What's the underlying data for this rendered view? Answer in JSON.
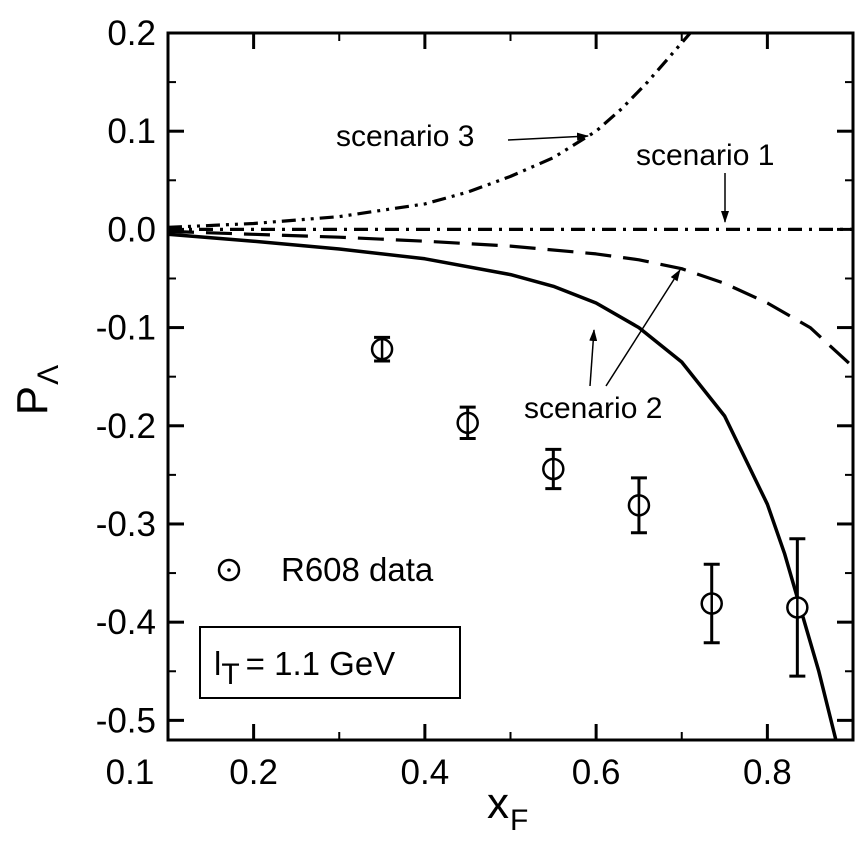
{
  "chart_data": {
    "type": "line",
    "xlabel": "x",
    "xlabel_sub": "F",
    "ylabel": "P",
    "ylabel_sub": "Λ",
    "xlim": [
      0.1,
      0.9
    ],
    "ylim": [
      -0.52,
      0.2
    ],
    "x_ticks": [
      0.2,
      0.4,
      0.6,
      0.8
    ],
    "x_tick_labels": [
      "0.2",
      "0.4",
      "0.6",
      "0.8"
    ],
    "x_origin_label": "0.1",
    "y_ticks": [
      0.2,
      0.1,
      0.0,
      -0.1,
      -0.2,
      -0.3,
      -0.4,
      -0.5
    ],
    "y_tick_labels": [
      "0.2",
      "0.1",
      "0.0",
      "-0.1",
      "-0.2",
      "-0.3",
      "-0.4",
      "-0.5"
    ],
    "series": [
      {
        "id": "scenario1",
        "style": "dash-dot",
        "x": [
          0.1,
          0.2,
          0.3,
          0.4,
          0.5,
          0.6,
          0.7,
          0.8,
          0.9
        ],
        "y": [
          0.0,
          0.0,
          0.0,
          0.0,
          0.0,
          0.0,
          0.0,
          0.0,
          0.0
        ]
      },
      {
        "id": "scenario2-dashed",
        "style": "dashed",
        "x": [
          0.1,
          0.2,
          0.3,
          0.4,
          0.5,
          0.6,
          0.65,
          0.7,
          0.75,
          0.8,
          0.85,
          0.9
        ],
        "y": [
          -0.002,
          -0.005,
          -0.008,
          -0.012,
          -0.017,
          -0.025,
          -0.031,
          -0.04,
          -0.055,
          -0.075,
          -0.1,
          -0.14
        ]
      },
      {
        "id": "scenario2-solid",
        "style": "solid",
        "x": [
          0.1,
          0.2,
          0.3,
          0.4,
          0.5,
          0.55,
          0.6,
          0.65,
          0.7,
          0.75,
          0.8,
          0.82,
          0.84,
          0.86,
          0.88
        ],
        "y": [
          -0.005,
          -0.012,
          -0.02,
          -0.03,
          -0.046,
          -0.058,
          -0.075,
          -0.1,
          -0.135,
          -0.19,
          -0.28,
          -0.33,
          -0.39,
          -0.45,
          -0.52
        ]
      },
      {
        "id": "scenario3",
        "style": "dash-dot-dot",
        "x": [
          0.1,
          0.2,
          0.3,
          0.4,
          0.45,
          0.5,
          0.55,
          0.6,
          0.63,
          0.66,
          0.69,
          0.71
        ],
        "y": [
          0.002,
          0.006,
          0.013,
          0.026,
          0.038,
          0.054,
          0.073,
          0.1,
          0.123,
          0.15,
          0.18,
          0.2
        ]
      }
    ],
    "r608_data": {
      "label": "R608 data",
      "points": [
        {
          "x": 0.35,
          "y": -0.122,
          "err": 0.012
        },
        {
          "x": 0.45,
          "y": -0.197,
          "err": 0.016
        },
        {
          "x": 0.55,
          "y": -0.244,
          "err": 0.02
        },
        {
          "x": 0.65,
          "y": -0.281,
          "err": 0.028
        },
        {
          "x": 0.735,
          "y": -0.381,
          "err": 0.04
        },
        {
          "x": 0.835,
          "y": -0.385,
          "err": 0.07
        }
      ]
    },
    "annotations": {
      "scenario3": "scenario 3",
      "scenario1": "scenario 1",
      "scenario2": "scenario 2"
    },
    "parameter_box": {
      "symbol": "l",
      "subscript": "T",
      "value": "= 1.1 GeV"
    }
  }
}
